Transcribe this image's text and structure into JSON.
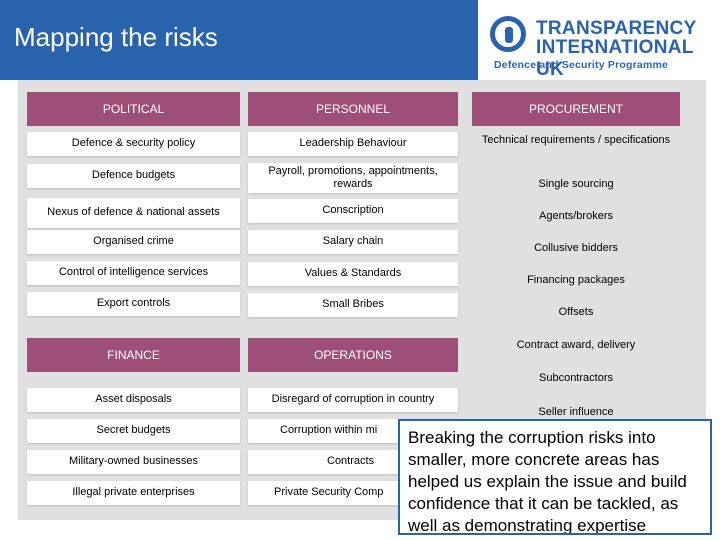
{
  "page": {
    "title": "Mapping the risks"
  },
  "logo": {
    "line1": "TRANSPARENCY",
    "line2": "INTERNATIONAL UK",
    "subtitle": "Defence and Security Programme",
    "brand_color": "#2a63ad"
  },
  "categories": {
    "political": "POLITICAL",
    "personnel": "PERSONNEL",
    "procurement": "PROCUREMENT",
    "finance": "FINANCE",
    "operations": "OPERATIONS"
  },
  "political_items": [
    "Defence & security policy",
    "Defence budgets",
    "Nexus of defence & national assets",
    "Organised crime",
    "Control of intelligence services",
    "Export controls"
  ],
  "personnel_items": [
    "Leadership Behaviour",
    "Payroll, promotions, appointments, rewards",
    "Conscription",
    "Salary chain",
    "Values & Standards",
    "Small Bribes"
  ],
  "procurement_items": [
    "Technical requirements / specifications",
    "Single sourcing",
    "Agents/brokers",
    "Collusive bidders",
    "Financing packages",
    "Offsets",
    "Contract award, delivery",
    "Subcontractors",
    "Seller influence"
  ],
  "finance_items": [
    "Asset disposals",
    "Secret budgets",
    "Military-owned businesses",
    "Illegal private enterprises"
  ],
  "operations_items": [
    "Disregard of corruption in country",
    "Corruption within mi",
    "Contracts",
    "Private Security Comp"
  ],
  "callout": {
    "text": "Breaking the corruption risks into smaller, more concrete areas has helped us explain the issue and build confidence that it can be tackled, as well as demonstrating expertise"
  },
  "colors": {
    "header_bar": "#2a63ad",
    "category_header": "#9e4f78",
    "panel": "#e0e0e0"
  }
}
